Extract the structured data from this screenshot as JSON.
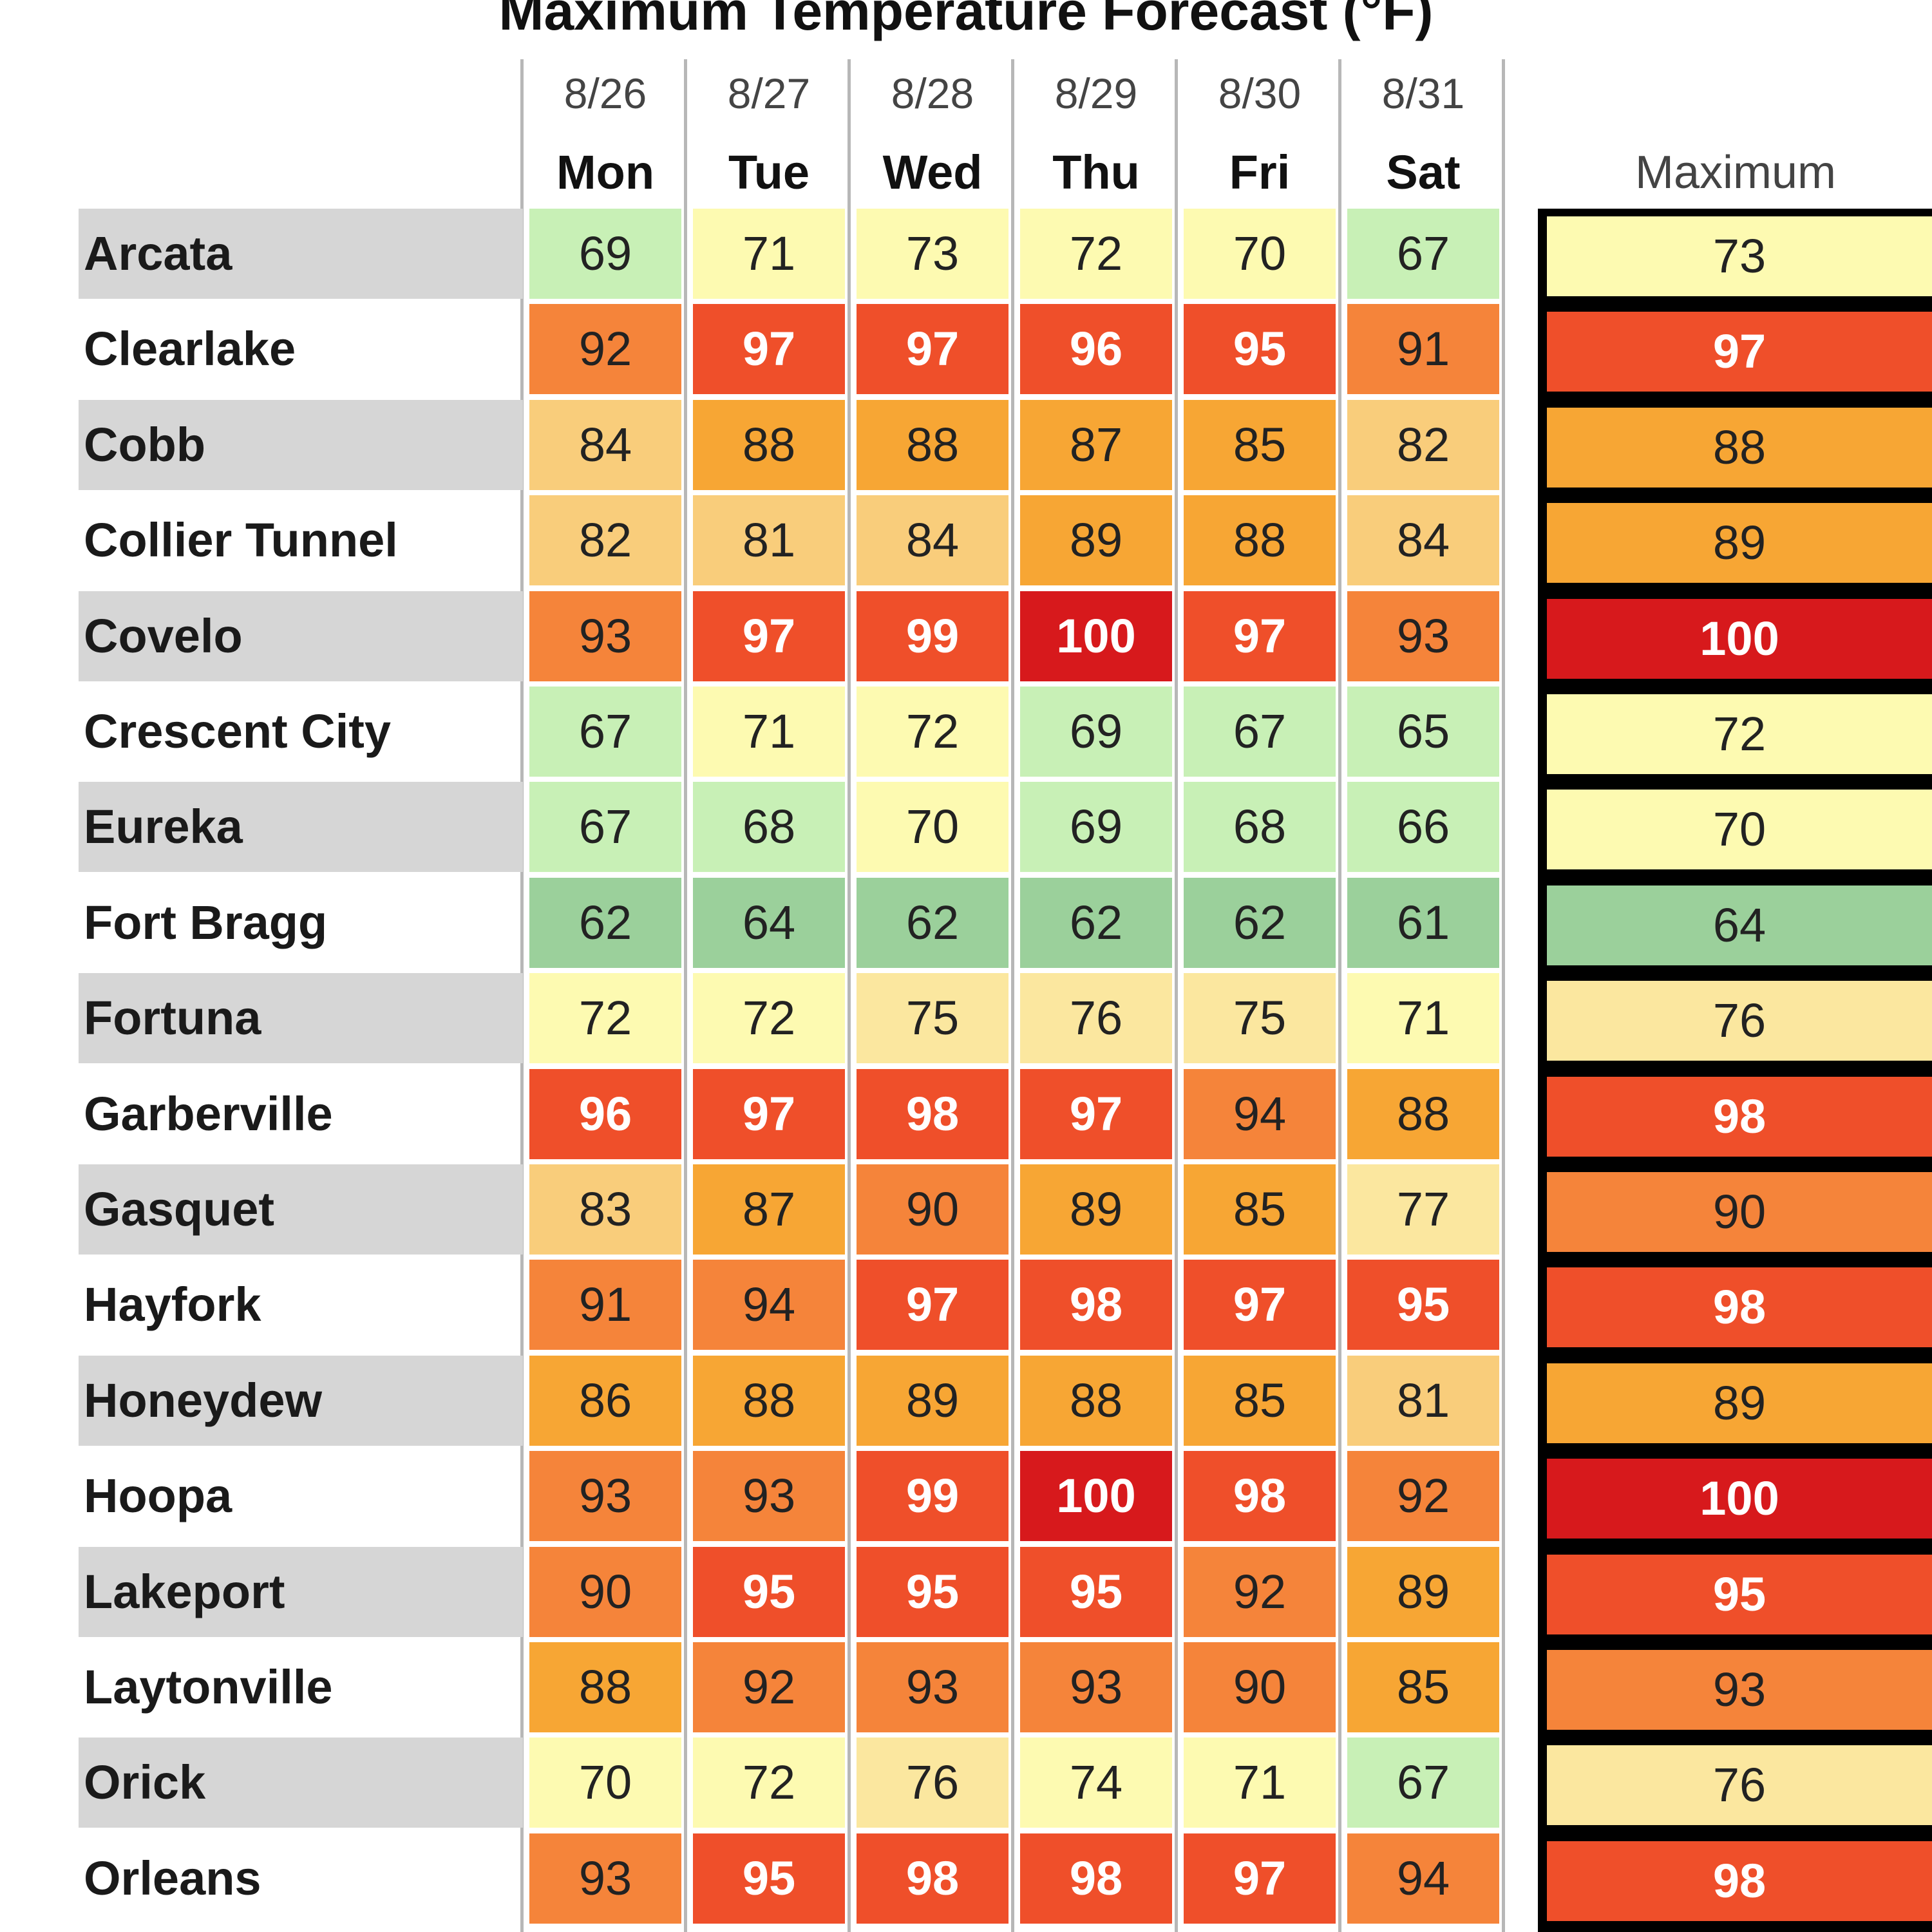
{
  "chart_data": {
    "type": "table",
    "title": "Maximum Temperature Forecast (°F)",
    "columns": [
      {
        "date": "8/26",
        "day": "Mon"
      },
      {
        "date": "8/27",
        "day": "Tue"
      },
      {
        "date": "8/28",
        "day": "Wed"
      },
      {
        "date": "8/29",
        "day": "Thu"
      },
      {
        "date": "8/30",
        "day": "Fri"
      },
      {
        "date": "8/31",
        "day": "Sat"
      }
    ],
    "max_header": "Maximum",
    "rows": [
      {
        "city": "Arcata",
        "values": [
          69,
          71,
          73,
          72,
          70,
          67
        ],
        "max": 73
      },
      {
        "city": "Clearlake",
        "values": [
          92,
          97,
          97,
          96,
          95,
          91
        ],
        "max": 97
      },
      {
        "city": "Cobb",
        "values": [
          84,
          88,
          88,
          87,
          85,
          82
        ],
        "max": 88
      },
      {
        "city": "Collier Tunnel",
        "values": [
          82,
          81,
          84,
          89,
          88,
          84
        ],
        "max": 89
      },
      {
        "city": "Covelo",
        "values": [
          93,
          97,
          99,
          100,
          97,
          93
        ],
        "max": 100
      },
      {
        "city": "Crescent City",
        "values": [
          67,
          71,
          72,
          69,
          67,
          65
        ],
        "max": 72
      },
      {
        "city": "Eureka",
        "values": [
          67,
          68,
          70,
          69,
          68,
          66
        ],
        "max": 70
      },
      {
        "city": "Fort Bragg",
        "values": [
          62,
          64,
          62,
          62,
          62,
          61
        ],
        "max": 64
      },
      {
        "city": "Fortuna",
        "values": [
          72,
          72,
          75,
          76,
          75,
          71
        ],
        "max": 76
      },
      {
        "city": "Garberville",
        "values": [
          96,
          97,
          98,
          97,
          94,
          88
        ],
        "max": 98
      },
      {
        "city": "Gasquet",
        "values": [
          83,
          87,
          90,
          89,
          85,
          77
        ],
        "max": 90
      },
      {
        "city": "Hayfork",
        "values": [
          91,
          94,
          97,
          98,
          97,
          95
        ],
        "max": 98
      },
      {
        "city": "Honeydew",
        "values": [
          86,
          88,
          89,
          88,
          85,
          81
        ],
        "max": 89
      },
      {
        "city": "Hoopa",
        "values": [
          93,
          93,
          99,
          100,
          98,
          92
        ],
        "max": 100
      },
      {
        "city": "Lakeport",
        "values": [
          90,
          95,
          95,
          95,
          92,
          89
        ],
        "max": 95
      },
      {
        "city": "Laytonville",
        "values": [
          88,
          92,
          93,
          93,
          90,
          85
        ],
        "max": 93
      },
      {
        "city": "Orick",
        "values": [
          70,
          72,
          76,
          74,
          71,
          67
        ],
        "max": 76
      },
      {
        "city": "Orleans",
        "values": [
          93,
          95,
          98,
          98,
          97,
          94
        ],
        "max": 98
      }
    ],
    "color_scale": [
      {
        "min": 0,
        "max": 64,
        "color": "#9bd09b"
      },
      {
        "min": 65,
        "max": 69,
        "color": "#c8f0b6"
      },
      {
        "min": 70,
        "max": 74,
        "color": "#fdfab1"
      },
      {
        "min": 75,
        "max": 79,
        "color": "#fbe79f"
      },
      {
        "min": 80,
        "max": 84,
        "color": "#f9cd7b"
      },
      {
        "min": 85,
        "max": 89,
        "color": "#f7a634"
      },
      {
        "min": 90,
        "max": 94,
        "color": "#f5843a"
      },
      {
        "min": 95,
        "max": 99,
        "color": "#ef4f2a"
      },
      {
        "min": 100,
        "max": 200,
        "color": "#d7191c"
      }
    ],
    "white_text_from": 95
  }
}
